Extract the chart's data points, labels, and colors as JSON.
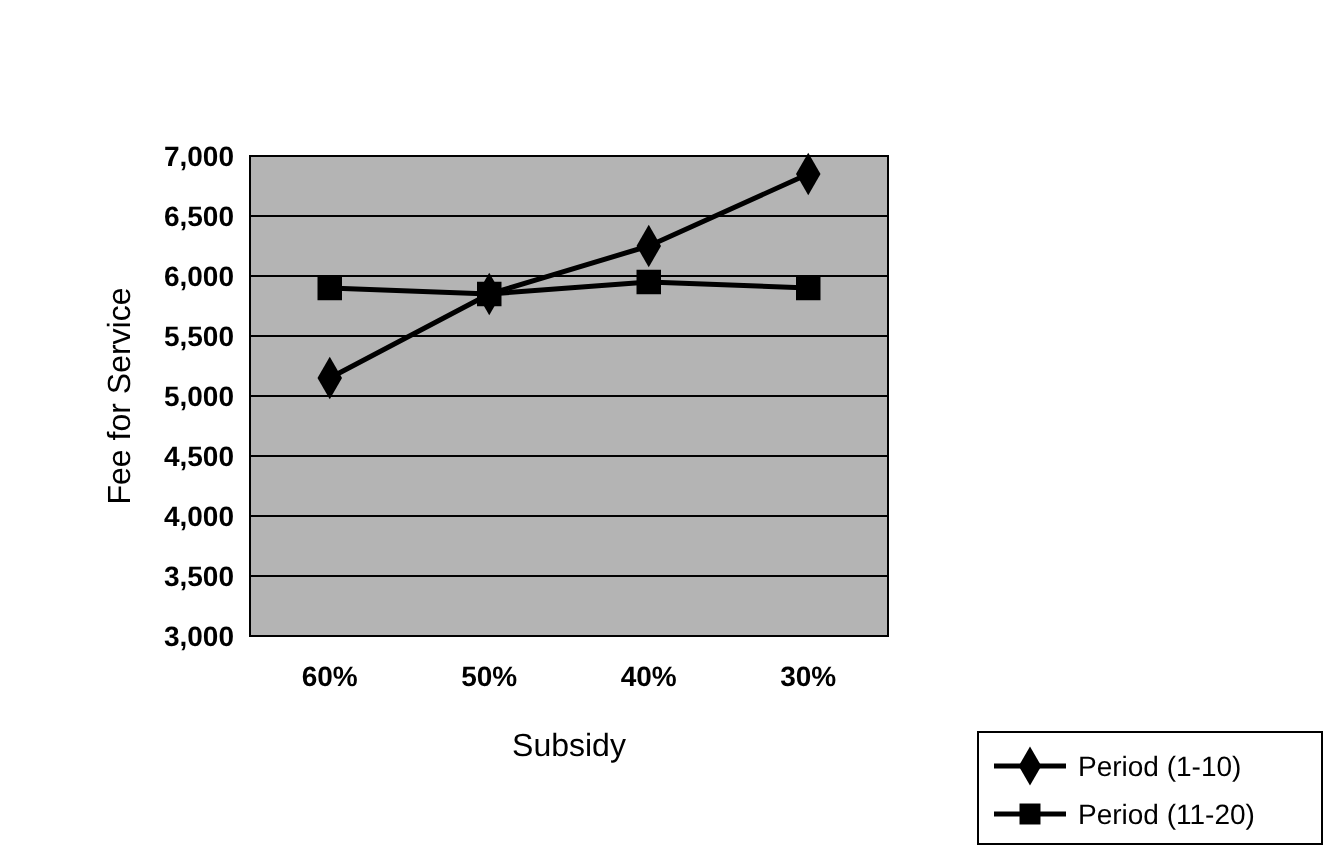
{
  "chart_data": {
    "type": "line",
    "xlabel": "Subsidy",
    "ylabel": "Fee for Service",
    "categories": [
      "60%",
      "50%",
      "40%",
      "30%"
    ],
    "series": [
      {
        "name": "Period (1-10)",
        "color": "#000000",
        "marker": "diamond",
        "values": [
          5150,
          5850,
          6250,
          6850
        ]
      },
      {
        "name": "Period (11-20)",
        "color": "#000000",
        "marker": "square",
        "values": [
          5900,
          5850,
          5950,
          5900
        ]
      }
    ],
    "ylim": [
      3000,
      7000
    ],
    "yticks": [
      {
        "value": 3000,
        "label": "3,000"
      },
      {
        "value": 3500,
        "label": "3,500"
      },
      {
        "value": 4000,
        "label": "4,000"
      },
      {
        "value": 4500,
        "label": "4,500"
      },
      {
        "value": 5000,
        "label": "5,000"
      },
      {
        "value": 5500,
        "label": "5,500"
      },
      {
        "value": 6000,
        "label": "6,000"
      },
      {
        "value": 6500,
        "label": "6,500"
      },
      {
        "value": 7000,
        "label": "7,000"
      }
    ],
    "grid": "y",
    "legend": "bottom right"
  }
}
